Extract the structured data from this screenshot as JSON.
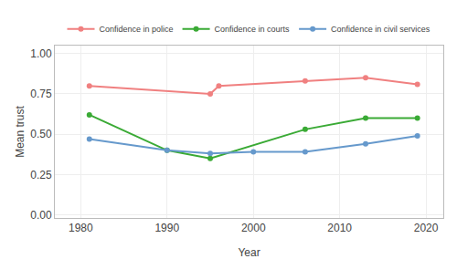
{
  "chart_data": {
    "type": "line",
    "xlabel": "Year",
    "ylabel": "Mean trust",
    "series": [
      {
        "name": "Confidence in police",
        "color": "#F08080",
        "x": [
          1981,
          1995,
          1996,
          2006,
          2013,
          2019
        ],
        "values": [
          0.8,
          0.75,
          0.8,
          0.83,
          0.85,
          0.81
        ]
      },
      {
        "name": "Confidence in courts",
        "color": "#3aaa35",
        "x": [
          1981,
          1990,
          1995,
          2006,
          2013,
          2019
        ],
        "values": [
          0.62,
          0.4,
          0.35,
          0.53,
          0.6,
          0.6
        ]
      },
      {
        "name": "Confidence in civil services",
        "color": "#6699cc",
        "x": [
          1981,
          1990,
          1995,
          2000,
          2006,
          2013,
          2019
        ],
        "values": [
          0.47,
          0.4,
          0.38,
          0.39,
          0.39,
          0.44,
          0.49
        ]
      }
    ],
    "xlim": [
      1977,
      2022
    ],
    "ylim": [
      -0.02,
      1.05
    ],
    "xticks": [
      1980,
      1990,
      2000,
      2010,
      2020
    ],
    "yticks": [
      {
        "value": 0.0,
        "label": "0.00"
      },
      0.25,
      {
        "value": 0.5,
        "label": "0.50"
      },
      0.75,
      {
        "value": 1.0,
        "label": "1.00"
      }
    ],
    "grid": true,
    "legend": "top",
    "marker": "circle"
  }
}
